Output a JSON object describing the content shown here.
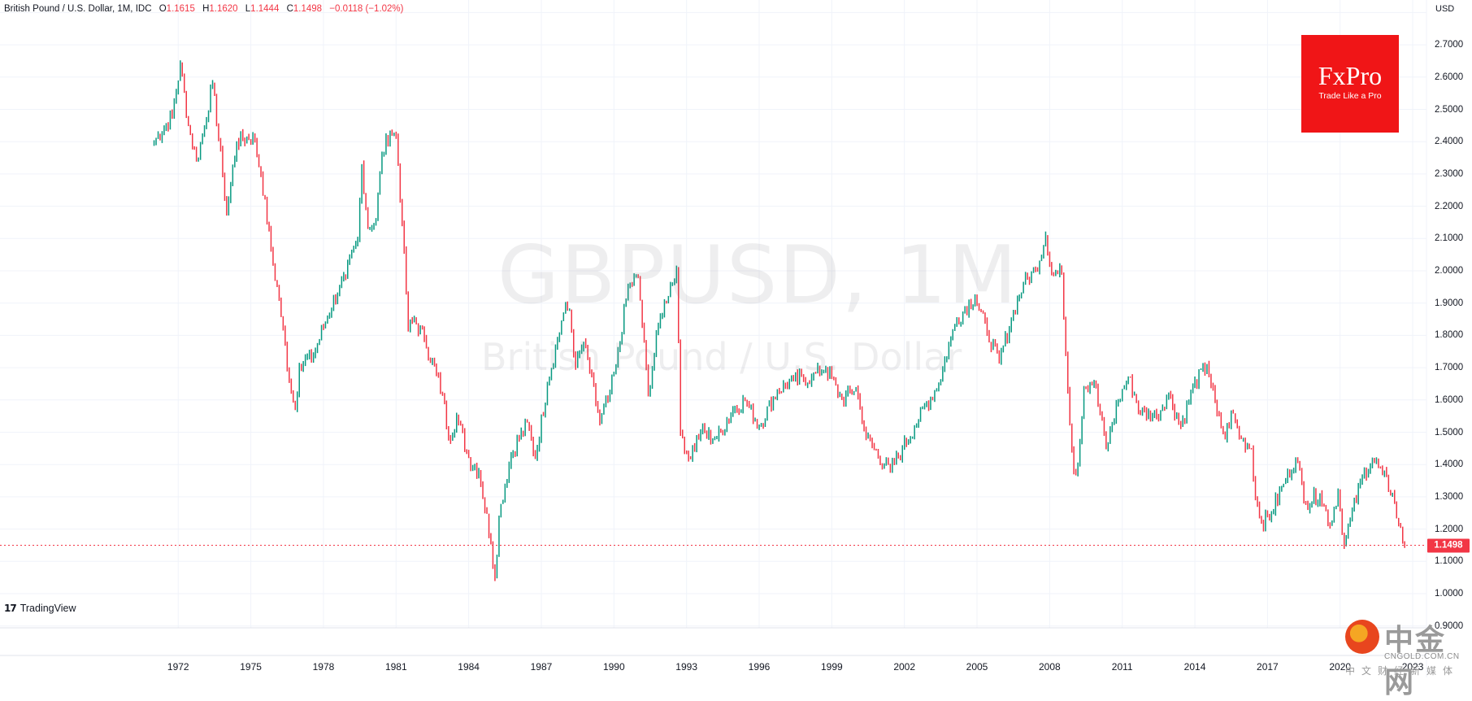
{
  "legend": {
    "symbol_text": "British Pound / U.S. Dollar, 1M, IDC",
    "open_label": "O",
    "open": "1.1615",
    "high_label": "H",
    "high": "1.1620",
    "low_label": "L",
    "low": "1.1444",
    "close_label": "C",
    "close": "1.1498",
    "change": "−0.0118 (−1.02%)"
  },
  "price_axis": {
    "currency": "USD",
    "ticks": [
      "2.7000",
      "2.6000",
      "2.5000",
      "2.4000",
      "2.3000",
      "2.2000",
      "2.1000",
      "2.0000",
      "1.9000",
      "1.8000",
      "1.7000",
      "1.6000",
      "1.5000",
      "1.4000",
      "1.3000",
      "1.2000",
      "1.1000",
      "1.0000",
      "0.9000"
    ],
    "last_price": "1.1498"
  },
  "time_axis": {
    "ticks": [
      "1972",
      "1975",
      "1978",
      "1981",
      "1984",
      "1987",
      "1990",
      "1993",
      "1996",
      "1999",
      "2002",
      "2005",
      "2008",
      "2011",
      "2014",
      "2017",
      "2020",
      "2023"
    ]
  },
  "watermark": {
    "title": "GBPUSD, 1M",
    "subtitle": "British Pound / U.S. Dollar"
  },
  "branding": {
    "fxpro_name": "FxPro",
    "fxpro_tagline": "Trade Like a Pro",
    "tradingview": "TradingView",
    "cngold_cn": "中金网",
    "cngold_domain": "CNGOLD.COM.CN",
    "cngold_sub": "中文财经新媒体"
  },
  "colors": {
    "up": "#089981",
    "down": "#F23645",
    "grid": "#F0F3FA",
    "fxpro": "#F01517"
  },
  "chart_data": {
    "type": "candlestick",
    "title": "GBPUSD, 1M",
    "subtitle": "British Pound / U.S. Dollar",
    "xlabel": "",
    "ylabel": "USD",
    "ylim": [
      0.88,
      2.82
    ],
    "grid": true,
    "interval": "monthly",
    "x_range": [
      "1971-01",
      "2022-09"
    ],
    "last_close": 1.1498,
    "anchors": [
      [
        "1971-01",
        2.4
      ],
      [
        "1971-10",
        2.48
      ],
      [
        "1972-02",
        2.64
      ],
      [
        "1972-06",
        2.45
      ],
      [
        "1972-10",
        2.34
      ],
      [
        "1973-02",
        2.45
      ],
      [
        "1973-06",
        2.58
      ],
      [
        "1973-11",
        2.3
      ],
      [
        "1974-01",
        2.18
      ],
      [
        "1974-06",
        2.4
      ],
      [
        "1975-02",
        2.42
      ],
      [
        "1975-06",
        2.3
      ],
      [
        "1975-12",
        2.02
      ],
      [
        "1976-03",
        1.91
      ],
      [
        "1976-09",
        1.62
      ],
      [
        "1976-11",
        1.57
      ],
      [
        "1977-01",
        1.71
      ],
      [
        "1977-08",
        1.74
      ],
      [
        "1978-03",
        1.86
      ],
      [
        "1978-09",
        1.95
      ],
      [
        "1978-12",
        1.98
      ],
      [
        "1979-06",
        2.1
      ],
      [
        "1979-08",
        2.33
      ],
      [
        "1979-11",
        2.13
      ],
      [
        "1980-03",
        2.16
      ],
      [
        "1980-06",
        2.36
      ],
      [
        "1980-10",
        2.43
      ],
      [
        "1981-01",
        2.42
      ],
      [
        "1981-04",
        2.15
      ],
      [
        "1981-07",
        1.82
      ],
      [
        "1981-10",
        1.85
      ],
      [
        "1982-03",
        1.79
      ],
      [
        "1982-12",
        1.62
      ],
      [
        "1983-03",
        1.48
      ],
      [
        "1983-07",
        1.55
      ],
      [
        "1984-01",
        1.42
      ],
      [
        "1984-06",
        1.38
      ],
      [
        "1984-12",
        1.16
      ],
      [
        "1985-02",
        1.05
      ],
      [
        "1985-04",
        1.24
      ],
      [
        "1985-10",
        1.43
      ],
      [
        "1986-06",
        1.53
      ],
      [
        "1986-10",
        1.42
      ],
      [
        "1987-04",
        1.65
      ],
      [
        "1987-12",
        1.87
      ],
      [
        "1988-03",
        1.88
      ],
      [
        "1988-06",
        1.7
      ],
      [
        "1988-10",
        1.78
      ],
      [
        "1989-06",
        1.53
      ],
      [
        "1989-10",
        1.6
      ],
      [
        "1990-02",
        1.7
      ],
      [
        "1990-08",
        1.95
      ],
      [
        "1991-01",
        1.98
      ],
      [
        "1991-06",
        1.62
      ],
      [
        "1991-12",
        1.86
      ],
      [
        "1992-08",
        2.01
      ],
      [
        "1992-10",
        1.5
      ],
      [
        "1993-02",
        1.42
      ],
      [
        "1993-08",
        1.5
      ],
      [
        "1994-04",
        1.48
      ],
      [
        "1994-12",
        1.57
      ],
      [
        "1995-06",
        1.6
      ],
      [
        "1996-01",
        1.52
      ],
      [
        "1996-10",
        1.63
      ],
      [
        "1997-06",
        1.66
      ],
      [
        "1998-03",
        1.67
      ],
      [
        "1998-10",
        1.7
      ],
      [
        "1999-06",
        1.6
      ],
      [
        "2000-01",
        1.64
      ],
      [
        "2000-06",
        1.48
      ],
      [
        "2001-06",
        1.38
      ],
      [
        "2001-12",
        1.45
      ],
      [
        "2002-06",
        1.52
      ],
      [
        "2003-06",
        1.65
      ],
      [
        "2003-12",
        1.79
      ],
      [
        "2004-03",
        1.85
      ],
      [
        "2004-12",
        1.92
      ],
      [
        "2005-06",
        1.81
      ],
      [
        "2005-12",
        1.72
      ],
      [
        "2006-06",
        1.85
      ],
      [
        "2006-12",
        1.96
      ],
      [
        "2007-06",
        2.0
      ],
      [
        "2007-11",
        2.11
      ],
      [
        "2008-02",
        1.99
      ],
      [
        "2008-07",
        1.99
      ],
      [
        "2008-10",
        1.63
      ],
      [
        "2009-01",
        1.38
      ],
      [
        "2009-03",
        1.4
      ],
      [
        "2009-06",
        1.64
      ],
      [
        "2009-11",
        1.66
      ],
      [
        "2010-05",
        1.45
      ],
      [
        "2010-11",
        1.6
      ],
      [
        "2011-04",
        1.67
      ],
      [
        "2011-10",
        1.56
      ],
      [
        "2012-06",
        1.55
      ],
      [
        "2012-12",
        1.62
      ],
      [
        "2013-06",
        1.52
      ],
      [
        "2013-12",
        1.64
      ],
      [
        "2014-07",
        1.71
      ],
      [
        "2014-12",
        1.56
      ],
      [
        "2015-04",
        1.48
      ],
      [
        "2015-07",
        1.56
      ],
      [
        "2015-12",
        1.48
      ],
      [
        "2016-05",
        1.45
      ],
      [
        "2016-07",
        1.3
      ],
      [
        "2016-10",
        1.22
      ],
      [
        "2017-03",
        1.25
      ],
      [
        "2017-09",
        1.34
      ],
      [
        "2018-03",
        1.42
      ],
      [
        "2018-08",
        1.28
      ],
      [
        "2019-03",
        1.31
      ],
      [
        "2019-08",
        1.21
      ],
      [
        "2019-12",
        1.32
      ],
      [
        "2020-03",
        1.15
      ],
      [
        "2020-06",
        1.23
      ],
      [
        "2020-12",
        1.36
      ],
      [
        "2021-05",
        1.42
      ],
      [
        "2021-10",
        1.37
      ],
      [
        "2022-03",
        1.31
      ],
      [
        "2022-06",
        1.21
      ],
      [
        "2022-09",
        1.15
      ]
    ]
  }
}
